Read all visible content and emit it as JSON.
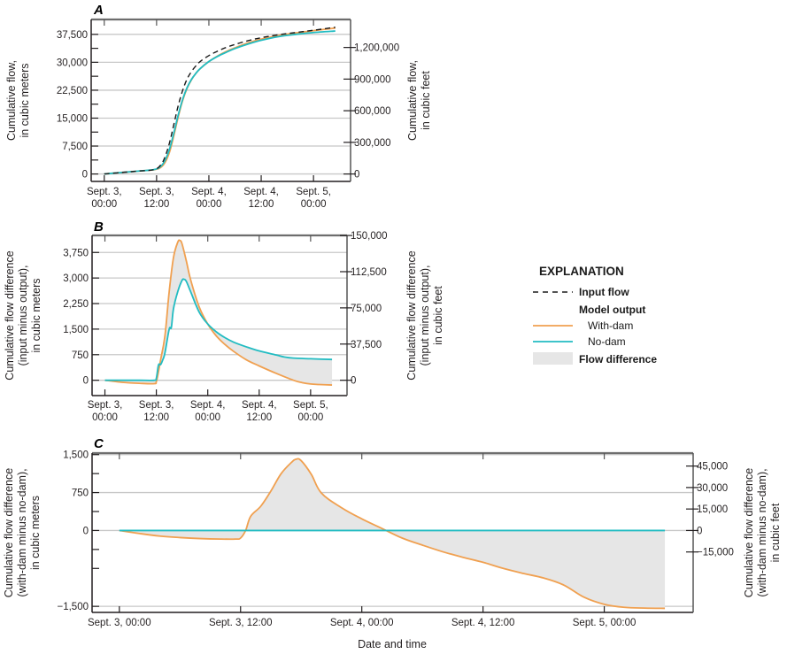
{
  "colors": {
    "with_dam": "#f0a050",
    "no_dam": "#22bcc2",
    "input": "#1a1a1a",
    "fill": "#e6e6e6",
    "grid": "#c8c8c8",
    "frame": "#555555"
  },
  "legend": {
    "title": "EXPLANATION",
    "input_flow": "Input flow",
    "model_output": "Model output",
    "with_dam": "With-dam",
    "no_dam": "No-dam",
    "flow_difference": "Flow difference"
  },
  "x_common_label": "Date and time",
  "chart_data": [
    {
      "id": "A",
      "panel_label": "A",
      "type": "line",
      "xlabel": "",
      "ylabel_left": [
        "Cumulative flow,",
        "in cubic meters"
      ],
      "ylabel_right": [
        "Cumulative flow,",
        "in cubic feet"
      ],
      "x_unit": "hours since Sept. 3, 00:00",
      "xlim": [
        -3,
        56.5
      ],
      "x_ticks": [
        0,
        12,
        24,
        36,
        48
      ],
      "x_tick_labels": [
        [
          "Sept. 3,",
          "00:00"
        ],
        [
          "Sept. 3,",
          "12:00"
        ],
        [
          "Sept. 4,",
          "00:00"
        ],
        [
          "Sept. 4,",
          "12:00"
        ],
        [
          "Sept. 5,",
          "00:00"
        ]
      ],
      "ylim": [
        -2000,
        41500
      ],
      "y_ticks_left": [
        0,
        7500,
        15000,
        22500,
        30000,
        37500
      ],
      "y_tick_labels_left": [
        "0",
        "7,500",
        "15,000",
        "22,500",
        "30,000",
        "37,500"
      ],
      "y_minor_left": [
        3750,
        11250,
        18750,
        26250,
        33750
      ],
      "y_ticks_right_cf": [
        0,
        300000,
        600000,
        900000,
        1200000
      ],
      "y_tick_labels_right": [
        "0",
        "300,000",
        "600,000",
        "900,000",
        "1,200,000"
      ],
      "cf_per_m3": 35.3147,
      "series": [
        {
          "name": "Input flow",
          "style": "dashed",
          "x": [
            0,
            4,
            8,
            11.5,
            13,
            14,
            15,
            16,
            17,
            18,
            19,
            20,
            21,
            22,
            24,
            26,
            28,
            30,
            33,
            36,
            40,
            44,
            48,
            53
          ],
          "y": [
            0,
            400,
            800,
            1200,
            2500,
            4800,
            8500,
            13500,
            18500,
            22500,
            25500,
            27500,
            29000,
            30200,
            31800,
            33000,
            34000,
            34800,
            35800,
            36600,
            37400,
            38000,
            38600,
            39400
          ]
        },
        {
          "name": "With-dam",
          "style": "solid",
          "x": [
            0,
            4,
            8,
            11.5,
            13,
            14,
            15,
            16,
            17,
            18,
            19,
            20,
            21,
            22,
            24,
            26,
            28,
            30,
            33,
            36,
            40,
            44,
            48,
            53
          ],
          "y": [
            0,
            400,
            800,
            1150,
            1800,
            3200,
            6000,
            10500,
            15500,
            19800,
            23000,
            25300,
            27000,
            28300,
            30200,
            31700,
            32900,
            33900,
            35200,
            36200,
            37200,
            37900,
            38500,
            39200
          ]
        },
        {
          "name": "No-dam",
          "style": "solid",
          "x": [
            0,
            4,
            8,
            11.5,
            13,
            14,
            15,
            16,
            17,
            18,
            19,
            20,
            21,
            22,
            24,
            26,
            28,
            30,
            33,
            36,
            40,
            44,
            48,
            53
          ],
          "y": [
            0,
            400,
            800,
            1200,
            2100,
            3800,
            6800,
            11200,
            16000,
            20100,
            23200,
            25400,
            27000,
            28300,
            30200,
            31600,
            32700,
            33700,
            34900,
            35900,
            36900,
            37500,
            38000,
            38400
          ]
        }
      ]
    },
    {
      "id": "B",
      "panel_label": "B",
      "type": "area",
      "xlabel": "",
      "ylabel_left": [
        "Cumulative flow difference",
        "(input minus output),",
        "in cubic meters"
      ],
      "ylabel_right": [
        "Cumulative flow difference",
        "(input  minus output),",
        "in cubic feet"
      ],
      "x_unit": "hours since Sept. 3, 00:00",
      "xlim": [
        -3,
        56.5
      ],
      "x_ticks": [
        0,
        12,
        24,
        36,
        48
      ],
      "x_tick_labels": [
        [
          "Sept. 3,",
          "00:00"
        ],
        [
          "Sept. 3,",
          "12:00"
        ],
        [
          "Sept. 4,",
          "00:00"
        ],
        [
          "Sept. 4,",
          "12:00"
        ],
        [
          "Sept. 5,",
          "00:00"
        ]
      ],
      "ylim": [
        -450,
        4250
      ],
      "y_ticks_left": [
        0,
        750,
        1500,
        2250,
        3000,
        3750
      ],
      "y_tick_labels_left": [
        "0",
        "750",
        "1,500",
        "2,250",
        "3,000",
        "3,750"
      ],
      "y_minor_left": [],
      "y_ticks_right_cf": [
        0,
        37500,
        75000,
        112500,
        150000
      ],
      "y_tick_labels_right": [
        "0",
        "37,500",
        "75,000",
        "112,500",
        "150,000"
      ],
      "cf_per_m3": 35.3147,
      "series": [
        {
          "name": "With-dam",
          "style": "solid",
          "x": [
            0,
            4,
            8,
            11.5,
            12,
            12.5,
            13,
            14,
            15,
            16,
            17,
            17.5,
            18,
            19,
            20,
            22,
            24,
            26,
            28,
            30,
            33,
            36,
            40,
            44,
            46,
            48,
            50,
            53
          ],
          "y": [
            0,
            -60,
            -90,
            -100,
            -40,
            250,
            600,
            1300,
            2600,
            3600,
            4050,
            4100,
            4000,
            3500,
            2950,
            2150,
            1650,
            1300,
            1050,
            850,
            600,
            420,
            200,
            0,
            -70,
            -110,
            -125,
            -140
          ]
        },
        {
          "name": "No-dam",
          "style": "solid",
          "x": [
            0,
            4,
            8,
            11.5,
            12,
            12.5,
            13,
            13.5,
            14,
            15,
            15.5,
            16,
            17,
            18,
            18.5,
            19,
            20,
            22,
            24,
            26,
            28,
            30,
            33,
            36,
            40,
            42,
            44,
            48,
            53
          ],
          "y": [
            0,
            0,
            0,
            0,
            60,
            450,
            460,
            600,
            800,
            1500,
            1550,
            2100,
            2600,
            2930,
            2960,
            2900,
            2600,
            2000,
            1650,
            1420,
            1250,
            1120,
            980,
            860,
            740,
            680,
            650,
            630,
            610
          ]
        }
      ]
    },
    {
      "id": "C",
      "panel_label": "C",
      "type": "area",
      "xlabel": "Date and time",
      "ylabel_left": [
        "Cumulative flow difference",
        "(with-dam minus no-dam),",
        "in cubic meters"
      ],
      "ylabel_right": [
        "Cumulative flow difference",
        "(with-dam minus no-dam),",
        "in cubic feet"
      ],
      "x_unit": "hours since Sept. 3, 00:00",
      "xlim": [
        -2.7,
        56.8
      ],
      "x_ticks": [
        0,
        12,
        24,
        36,
        48
      ],
      "x_tick_labels": [
        [
          "Sept. 3, 00:00"
        ],
        [
          "Sept. 3, 12:00"
        ],
        [
          "Sept. 4, 00:00"
        ],
        [
          "Sept. 4, 12:00"
        ],
        [
          "Sept. 5, 00:00"
        ]
      ],
      "ylim": [
        -1620,
        1530
      ],
      "y_ticks_left": [
        -1500,
        0,
        750,
        1500
      ],
      "y_tick_labels_left": [
        "−1,500",
        "0",
        "750",
        "1,500"
      ],
      "y_minor_left": [
        -750,
        375,
        1125,
        -375
      ],
      "y_ticks_right_cf": [
        -15000,
        0,
        15000,
        30000,
        45000
      ],
      "y_tick_labels_right": [
        "−15,000",
        "0",
        "15,000",
        "30,000",
        "45,000"
      ],
      "cf_per_m3": 35.3147,
      "series": [
        {
          "name": "With-dam",
          "style": "solid",
          "x": [
            0,
            2,
            4,
            6,
            8,
            10,
            11.5,
            12,
            12.5,
            13,
            14,
            15,
            16,
            17,
            17.5,
            18,
            19,
            20,
            22,
            24,
            26,
            28,
            30,
            32,
            34,
            36,
            38,
            40,
            42,
            44,
            46,
            48,
            50,
            52,
            54
          ],
          "y": [
            0,
            -60,
            -110,
            -140,
            -160,
            -170,
            -170,
            -150,
            0,
            280,
            480,
            780,
            1120,
            1340,
            1410,
            1380,
            1110,
            740,
            450,
            230,
            40,
            -150,
            -290,
            -420,
            -530,
            -630,
            -750,
            -850,
            -940,
            -1080,
            -1320,
            -1460,
            -1520,
            -1535,
            -1540
          ]
        },
        {
          "name": "No-dam",
          "style": "solid",
          "x": [
            0,
            54
          ],
          "y": [
            0,
            0
          ]
        }
      ]
    }
  ]
}
